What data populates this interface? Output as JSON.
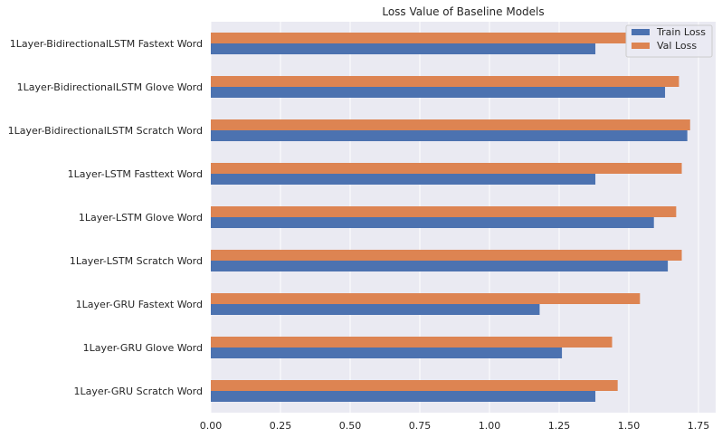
{
  "chart_data": {
    "type": "bar",
    "orientation": "horizontal",
    "title": "Loss Value of Baseline Models",
    "xlabel": "",
    "ylabel": "",
    "xlim": [
      0,
      1.8
    ],
    "xticks": [
      "0.00",
      "0.25",
      "0.50",
      "0.75",
      "1.00",
      "1.25",
      "1.50",
      "1.75"
    ],
    "grid": true,
    "legend_position": "top-right",
    "categories": [
      "1Layer-BidirectionalLSTM Fastext Word",
      "1Layer-BidirectionalLSTM Glove Word",
      "1Layer-BidirectionalLSTM Scratch Word",
      "1Layer-LSTM Fasttext Word",
      "1Layer-LSTM Glove Word",
      "1Layer-LSTM Scratch Word",
      "1Layer-GRU Fastext Word",
      "1Layer-GRU Glove Word",
      "1Layer-GRU Scratch Word"
    ],
    "series": [
      {
        "name": "Train Loss",
        "color": "#4c72b0",
        "values": [
          1.38,
          1.63,
          1.71,
          1.38,
          1.59,
          1.64,
          1.18,
          1.26,
          1.38
        ]
      },
      {
        "name": "Val Loss",
        "color": "#dd8452",
        "values": [
          1.49,
          1.68,
          1.72,
          1.69,
          1.67,
          1.69,
          1.54,
          1.44,
          1.46
        ]
      }
    ]
  }
}
